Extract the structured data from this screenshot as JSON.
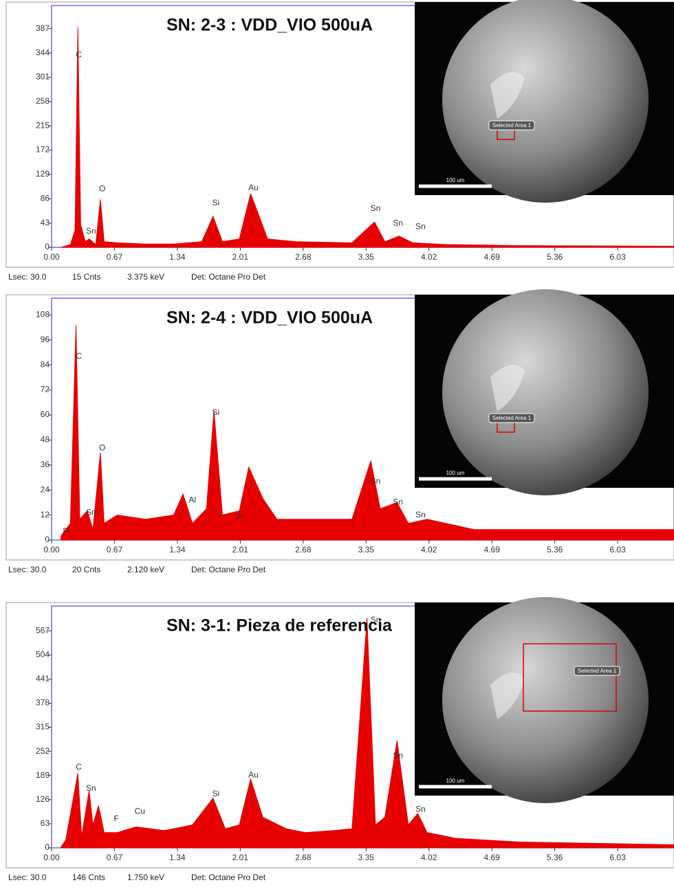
{
  "chart_data": [
    {
      "type": "area",
      "title": "SN: 2-3 :  VDD_VIO 500uA",
      "color": "#e60000",
      "x": [
        0.1,
        0.2,
        0.25,
        0.28,
        0.31,
        0.36,
        0.4,
        0.47,
        0.52,
        0.56,
        0.7,
        1.0,
        1.3,
        1.6,
        1.72,
        1.82,
        2.0,
        2.12,
        2.2,
        2.3,
        2.6,
        3.2,
        3.44,
        3.55,
        3.7,
        3.85,
        4.2,
        5.0,
        6.63
      ],
      "values": [
        0,
        5,
        30,
        390,
        40,
        10,
        15,
        5,
        85,
        10,
        8,
        6,
        6,
        10,
        55,
        10,
        15,
        95,
        60,
        15,
        10,
        8,
        45,
        10,
        20,
        8,
        5,
        3,
        2
      ],
      "xlim": [
        0,
        6.63
      ],
      "xticks": [
        {
          "value": 0,
          "label": "0.00"
        },
        0.67,
        1.34,
        2.01,
        2.68,
        3.35,
        4.02,
        4.69,
        5.36,
        6.03
      ],
      "ylim": [
        0,
        428
      ],
      "yticks": [
        0,
        43,
        86,
        129,
        172,
        215,
        258,
        301,
        344,
        387
      ],
      "annotations": [
        {
          "text": "C",
          "x": 0.29,
          "y": 340
        },
        {
          "text": "Sn",
          "x": 0.42,
          "y": 28
        },
        {
          "text": "O",
          "x": 0.54,
          "y": 103
        },
        {
          "text": "Si",
          "x": 1.75,
          "y": 78
        },
        {
          "text": "Au",
          "x": 2.15,
          "y": 105
        },
        {
          "text": "Sn",
          "x": 3.45,
          "y": 68
        },
        {
          "text": "Sn",
          "x": 3.69,
          "y": 42
        },
        {
          "text": "Sn",
          "x": 3.93,
          "y": 36
        }
      ],
      "status": [
        "Lsec: 30.0",
        "15 Cnts",
        "3.375 keV",
        "Det: Octane Pro Det"
      ],
      "inset_labels": [
        "Selected Area 1",
        "100 um"
      ]
    },
    {
      "type": "area",
      "title": "SN: 2-4 :  VDD_VIO 500uA",
      "color": "#e60000",
      "x": [
        0.1,
        0.2,
        0.26,
        0.3,
        0.38,
        0.44,
        0.52,
        0.56,
        0.7,
        1.0,
        1.3,
        1.4,
        1.5,
        1.65,
        1.73,
        1.82,
        2.0,
        2.1,
        2.25,
        2.4,
        3.2,
        3.4,
        3.5,
        3.68,
        3.8,
        4.0,
        4.5,
        6.63
      ],
      "values": [
        2,
        8,
        103,
        10,
        14,
        5,
        42,
        8,
        12,
        10,
        12,
        22,
        8,
        15,
        62,
        12,
        14,
        35,
        20,
        10,
        10,
        38,
        15,
        18,
        8,
        10,
        5,
        5
      ],
      "xlim": [
        0,
        6.63
      ],
      "xticks": [
        {
          "value": 0,
          "label": "0.00"
        },
        0.67,
        1.34,
        2.01,
        2.68,
        3.35,
        4.02,
        4.69,
        5.36,
        6.03
      ],
      "ylim": [
        0,
        116
      ],
      "yticks": [
        0,
        12,
        24,
        36,
        48,
        60,
        72,
        84,
        96,
        108
      ],
      "annotations": [
        {
          "text": "P",
          "x": 0.15,
          "y": 4
        },
        {
          "text": "C",
          "x": 0.29,
          "y": 88
        },
        {
          "text": "Sn",
          "x": 0.42,
          "y": 13
        },
        {
          "text": "O",
          "x": 0.54,
          "y": 44
        },
        {
          "text": "Al",
          "x": 1.5,
          "y": 19
        },
        {
          "text": "Si",
          "x": 1.75,
          "y": 61
        },
        {
          "text": "P",
          "x": 2.01,
          "y": 11
        },
        {
          "text": "Sn",
          "x": 3.45,
          "y": 28
        },
        {
          "text": "Sn",
          "x": 3.69,
          "y": 18
        },
        {
          "text": "Sn",
          "x": 3.93,
          "y": 12
        }
      ],
      "status": [
        "Lsec: 30.0",
        "20 Cnts",
        "2.120 keV",
        "Det: Octane Pro Det"
      ],
      "inset_labels": [
        "Selected Area 1",
        "100 um"
      ]
    },
    {
      "type": "area",
      "title": "SN: 3-1: Pieza de referencia",
      "color": "#e60000",
      "x": [
        0.1,
        0.15,
        0.28,
        0.32,
        0.4,
        0.44,
        0.5,
        0.56,
        0.7,
        0.9,
        1.2,
        1.5,
        1.72,
        1.85,
        2.0,
        2.12,
        2.25,
        2.5,
        2.7,
        3.0,
        3.2,
        3.36,
        3.45,
        3.55,
        3.68,
        3.8,
        3.9,
        4.0,
        4.3,
        5.0,
        6.63
      ],
      "values": [
        2,
        20,
        195,
        30,
        150,
        60,
        110,
        40,
        40,
        55,
        45,
        60,
        130,
        50,
        60,
        180,
        80,
        50,
        40,
        45,
        50,
        600,
        60,
        80,
        280,
        60,
        90,
        40,
        25,
        15,
        8
      ],
      "xlim": [
        0,
        6.63
      ],
      "xticks": [
        {
          "value": 0,
          "label": "0.00"
        },
        0.67,
        1.34,
        2.01,
        2.68,
        3.35,
        4.02,
        4.69,
        5.36,
        6.03
      ],
      "ylim": [
        0,
        632
      ],
      "yticks": [
        0,
        63,
        126,
        189,
        252,
        315,
        378,
        441,
        504,
        567
      ],
      "annotations": [
        {
          "text": "C",
          "x": 0.29,
          "y": 210
        },
        {
          "text": "Sn",
          "x": 0.42,
          "y": 155
        },
        {
          "text": "F",
          "x": 0.69,
          "y": 75
        },
        {
          "text": "Cu",
          "x": 0.94,
          "y": 95
        },
        {
          "text": "Si",
          "x": 1.75,
          "y": 140
        },
        {
          "text": "Au",
          "x": 2.15,
          "y": 190
        },
        {
          "text": "Sn",
          "x": 3.45,
          "y": 595
        },
        {
          "text": "Sn",
          "x": 3.69,
          "y": 240
        },
        {
          "text": "Sn",
          "x": 3.93,
          "y": 100
        }
      ],
      "status": [
        "Lsec: 30.0",
        "146 Cnts",
        "1.750 keV",
        "Det: Octane Pro Det"
      ],
      "inset_labels": [
        "Selected Area 1",
        "100 um"
      ]
    }
  ]
}
